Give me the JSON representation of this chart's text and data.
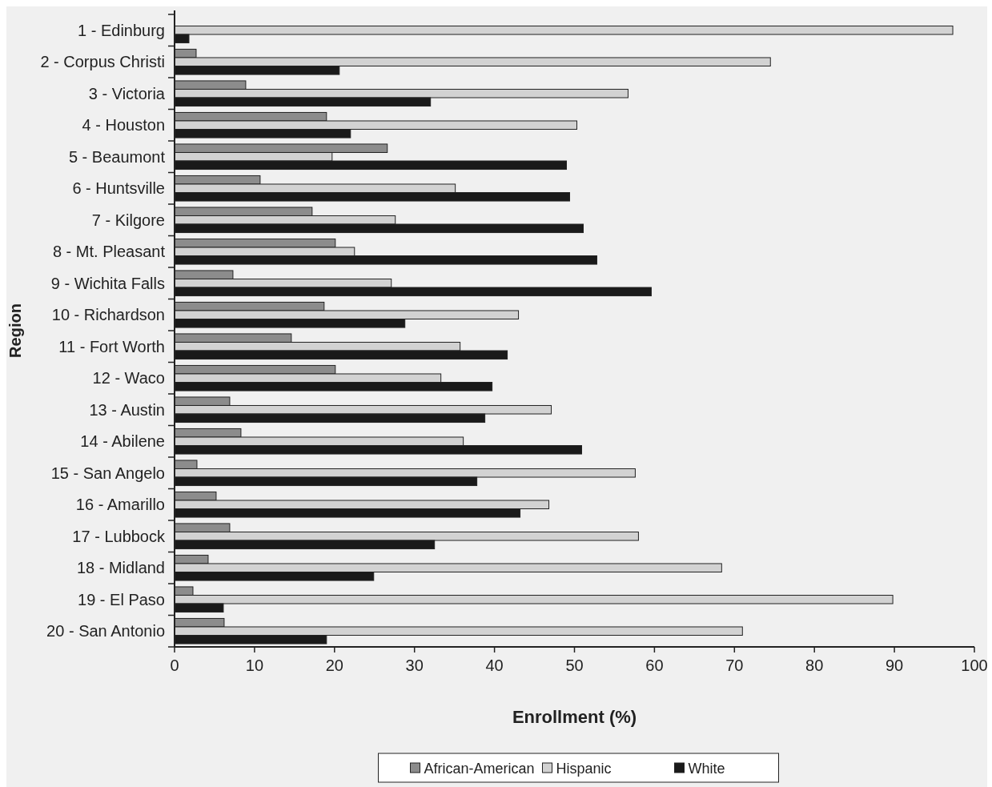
{
  "chart_data": {
    "type": "bar",
    "orientation": "horizontal",
    "xlabel": "Enrollment (%)",
    "ylabel": "Region",
    "categories": [
      "1 - Edinburg",
      "2 - Corpus Christi",
      "3 - Victoria",
      "4 - Houston",
      "5 - Beaumont",
      "6 - Huntsville",
      "7 - Kilgore",
      "8 - Mt. Pleasant",
      "9 - Wichita Falls",
      "10 - Richardson",
      "11 - Fort Worth",
      "12 - Waco",
      "13 - Austin",
      "14 - Abilene",
      "15 - San Angelo",
      "16 - Amarillo",
      "17 - Lubbock",
      "18 - Midland",
      "19 - El Paso",
      "20 - San Antonio"
    ],
    "series": [
      {
        "name": "African-American",
        "color": "#8c8c8c",
        "values": [
          0,
          2.7,
          8.9,
          19.0,
          26.6,
          10.7,
          17.2,
          20.1,
          7.3,
          18.7,
          14.6,
          20.1,
          6.9,
          8.3,
          2.8,
          5.2,
          6.9,
          4.2,
          2.3,
          6.2
        ]
      },
      {
        "name": "Hispanic",
        "color": "#d2d2d2",
        "values": [
          97.3,
          74.5,
          56.7,
          50.3,
          19.7,
          35.1,
          27.6,
          22.5,
          27.1,
          43.0,
          35.7,
          33.3,
          47.1,
          36.1,
          57.6,
          46.8,
          58.0,
          68.4,
          89.8,
          71.0
        ]
      },
      {
        "name": "White",
        "color": "#1a1a1a",
        "values": [
          1.8,
          20.6,
          32.0,
          22.0,
          49.0,
          49.4,
          51.1,
          52.8,
          59.6,
          28.8,
          41.6,
          39.7,
          38.8,
          50.9,
          37.8,
          43.2,
          32.5,
          24.9,
          6.1,
          19.0
        ]
      }
    ],
    "xlim": [
      0,
      100
    ],
    "xticks": [
      0,
      10,
      20,
      30,
      40,
      50,
      60,
      70,
      80,
      90,
      100
    ],
    "grid": false,
    "legend": "bottom"
  }
}
